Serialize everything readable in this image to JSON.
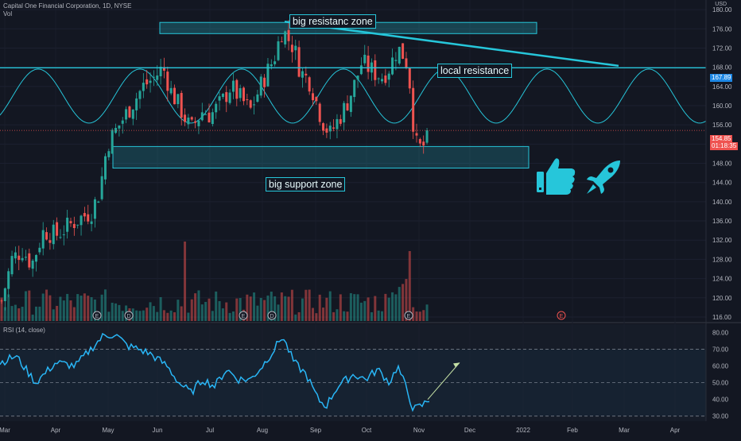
{
  "header": {
    "title": "Capital One Financial Corporation, 1D, NYSE",
    "volume_label": "Vol",
    "currency": "USD"
  },
  "rsi_header": "RSI (14, close)",
  "annotations": {
    "resistance_zone": "big resistanc zone",
    "local_resistance": "local resistance",
    "support_zone": "big support zone"
  },
  "price_tags": {
    "resistance_level": "167.89",
    "last_price": "154.85",
    "countdown": "01:18:35"
  },
  "icons": [
    "thumbs-up-icon",
    "rocket-icon"
  ],
  "colors": {
    "background": "#131722",
    "up": "#26a69a",
    "down": "#ef5350",
    "accent": "#26c6da",
    "rsi_line": "#29b6f6",
    "arrow": "#c5e1a5"
  },
  "chart_data": {
    "type": "candlestick",
    "price_axis": {
      "ticks": [
        "116.00",
        "120.00",
        "124.00",
        "128.00",
        "132.00",
        "136.00",
        "140.00",
        "144.00",
        "148.00",
        "152.00",
        "156.00",
        "160.00",
        "164.00",
        "168.00",
        "172.00",
        "176.00",
        "180.00"
      ],
      "range": [
        115,
        182
      ]
    },
    "rsi_axis": {
      "ticks": [
        "30.00",
        "40.00",
        "50.00",
        "60.00",
        "70.00",
        "80.00"
      ],
      "range": [
        27,
        85
      ],
      "levels": [
        30,
        50,
        70
      ]
    },
    "time_axis": [
      "Mar",
      "Apr",
      "May",
      "Jun",
      "Jul",
      "Aug",
      "Sep",
      "Oct",
      "Nov",
      "Dec",
      "2022",
      "Feb",
      "Mar",
      "Apr"
    ],
    "resistance_zone": [
      175.5,
      177.5
    ],
    "support_zone": [
      147.5,
      151.5
    ],
    "local_resistance": 167.89,
    "trendline": [
      [
        0.366,
        177.5
      ],
      [
        0.833,
        168.3
      ]
    ],
    "last_price": 154.85,
    "earnings_markers": [
      "E",
      "D",
      "E",
      "D",
      "E",
      "E"
    ],
    "series_summary": {
      "start_price": 120,
      "may_low": 147,
      "aug_high": 177,
      "oct_high": 174,
      "nov_low": 150,
      "last": 154.85
    },
    "rsi_summary": {
      "min": 33,
      "max": 80,
      "last": 42
    }
  }
}
